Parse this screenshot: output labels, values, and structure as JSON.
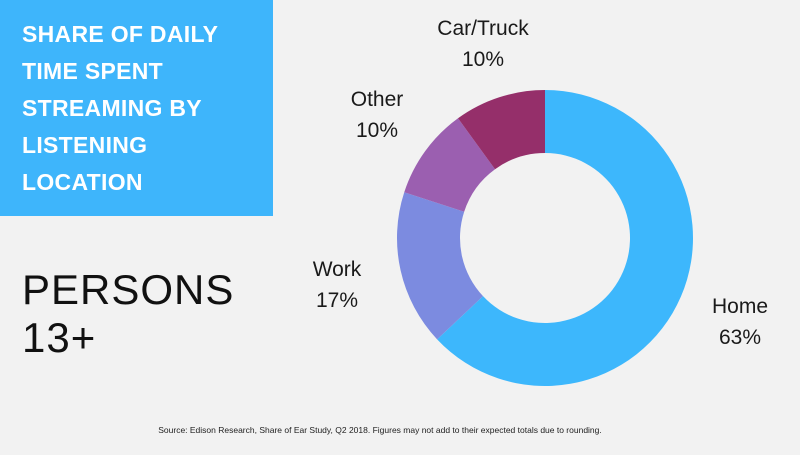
{
  "title": "SHARE OF DAILY TIME SPENT STREAMING BY LISTENING LOCATION",
  "audience": "PERSONS 13+",
  "source": "Source: Edison Research, Share of Ear Study, Q2 2018. Figures may not add to their expected totals due to rounding.",
  "colors": {
    "title_box": "#3eb5fb",
    "background": "#f2f2f2"
  },
  "chart_data": {
    "type": "pie",
    "donut": true,
    "slices": [
      {
        "label": "Home",
        "value": 63,
        "display": "63%",
        "color": "#3db7fc"
      },
      {
        "label": "Work",
        "value": 17,
        "display": "17%",
        "color": "#7c8be0"
      },
      {
        "label": "Other",
        "value": 10,
        "display": "10%",
        "color": "#9b5fb0"
      },
      {
        "label": "Car/Truck",
        "value": 10,
        "display": "10%",
        "color": "#952f6a"
      }
    ]
  }
}
